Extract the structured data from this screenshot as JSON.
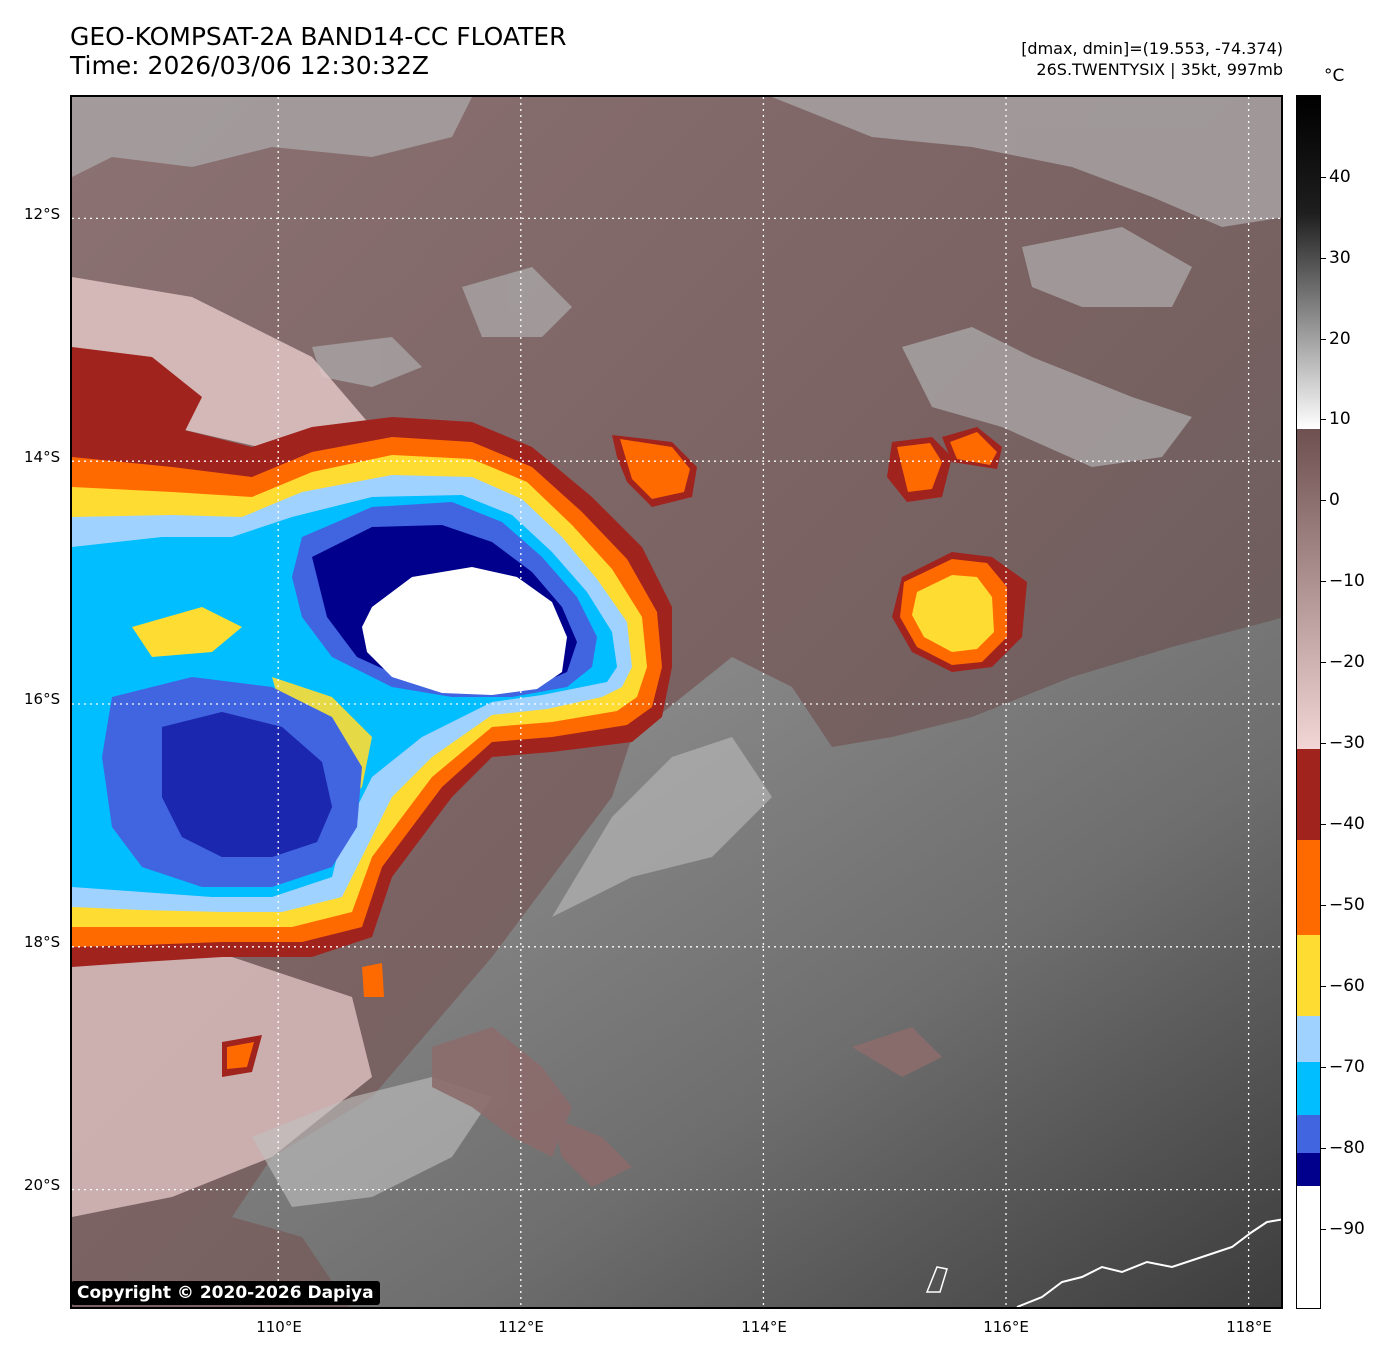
{
  "header": {
    "title": "GEO-KOMPSAT-2A BAND14-CC FLOATER",
    "time": "Time: 2026/03/06 12:30:32Z",
    "range": "[dmax, dmin]=(19.553, -74.374)",
    "storm": "26S.TWENTYSIX | 35kt, 997mb"
  },
  "map": {
    "lat_labels": [
      "12°S",
      "14°S",
      "16°S",
      "18°S",
      "20°S"
    ],
    "lon_labels": [
      "110°E",
      "112°E",
      "114°E",
      "116°E",
      "118°E"
    ],
    "lat_range": [
      -21.0,
      -11.0
    ],
    "lon_range": [
      108.3,
      118.3
    ],
    "gridlines": "dotted white"
  },
  "colorbar": {
    "unit": "°C",
    "labels": [
      "40",
      "30",
      "20",
      "10",
      "0",
      "−10",
      "−20",
      "−30",
      "−40",
      "−50",
      "−60",
      "−70",
      "−80",
      "−90"
    ],
    "range": [
      -100,
      50
    ],
    "colors": {
      "warm_black": "#000000",
      "white_10": "#ffffff",
      "brown_warm": "#6e5050",
      "pink_cold": "#f0d2d2",
      "dark_red": "#a0231e",
      "orange": "#ff6a00",
      "yellow": "#ffdc32",
      "light_blue": "#a0d2ff",
      "cyan": "#00beff",
      "royal_blue": "#4164e1",
      "navy": "#00008c",
      "coldest_white": "#ffffff"
    }
  },
  "copyright": "Copyright © 2020-2026 Dapiya"
}
